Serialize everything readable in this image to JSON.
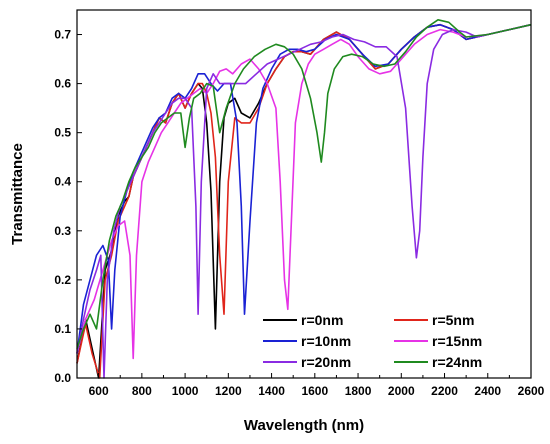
{
  "chart_data": {
    "type": "line",
    "title": "",
    "xlabel": "Wavelength (nm)",
    "ylabel": "Transmittance",
    "xlim": [
      500,
      2600
    ],
    "ylim": [
      0.0,
      0.75
    ],
    "xticks": [
      600,
      800,
      1000,
      1200,
      1400,
      1600,
      1800,
      2000,
      2200,
      2400,
      2600
    ],
    "yticks": [
      0.0,
      0.1,
      0.2,
      0.3,
      0.4,
      0.5,
      0.6,
      0.7
    ],
    "grid": false,
    "legend_position": "bottom-right",
    "series": [
      {
        "name": "r=0nm",
        "color": "#000000",
        "x": [
          500,
          540,
          570,
          600,
          630,
          660,
          690,
          720,
          740,
          760,
          790,
          820,
          850,
          880,
          910,
          940,
          970,
          1000,
          1030,
          1060,
          1080,
          1100,
          1120,
          1140,
          1160,
          1180,
          1200,
          1230,
          1260,
          1300,
          1340,
          1380,
          1420,
          1460,
          1500,
          1540,
          1580,
          1640,
          1700,
          1760,
          1820,
          1880,
          1940,
          2000,
          2060,
          2120,
          2180,
          2240,
          2300,
          2400,
          2500,
          2600
        ],
        "y": [
          0.03,
          0.12,
          0.06,
          0.0,
          0.22,
          0.26,
          0.33,
          0.36,
          0.37,
          0.41,
          0.44,
          0.47,
          0.5,
          0.53,
          0.52,
          0.56,
          0.58,
          0.55,
          0.58,
          0.6,
          0.59,
          0.52,
          0.38,
          0.1,
          0.4,
          0.53,
          0.56,
          0.57,
          0.54,
          0.53,
          0.56,
          0.6,
          0.63,
          0.655,
          0.665,
          0.665,
          0.66,
          0.69,
          0.705,
          0.69,
          0.66,
          0.63,
          0.64,
          0.67,
          0.695,
          0.715,
          0.72,
          0.71,
          0.69,
          0.7,
          0.71,
          0.72
        ]
      },
      {
        "name": "r=5nm",
        "color": "#e0251b",
        "x": [
          500,
          540,
          570,
          605,
          630,
          660,
          690,
          720,
          740,
          760,
          790,
          820,
          850,
          880,
          910,
          940,
          970,
          1000,
          1030,
          1060,
          1080,
          1100,
          1120,
          1140,
          1160,
          1180,
          1200,
          1230,
          1260,
          1300,
          1340,
          1380,
          1420,
          1460,
          1500,
          1540,
          1580,
          1640,
          1700,
          1760,
          1820,
          1880,
          1940,
          2000,
          2060,
          2120,
          2180,
          2240,
          2300,
          2400,
          2500,
          2600
        ],
        "y": [
          0.03,
          0.11,
          0.05,
          0.0,
          0.2,
          0.25,
          0.32,
          0.35,
          0.37,
          0.41,
          0.44,
          0.47,
          0.5,
          0.53,
          0.52,
          0.56,
          0.58,
          0.55,
          0.58,
          0.6,
          0.6,
          0.58,
          0.54,
          0.45,
          0.25,
          0.13,
          0.4,
          0.53,
          0.52,
          0.52,
          0.55,
          0.6,
          0.63,
          0.655,
          0.665,
          0.665,
          0.66,
          0.69,
          0.705,
          0.69,
          0.66,
          0.63,
          0.64,
          0.67,
          0.695,
          0.715,
          0.72,
          0.71,
          0.69,
          0.7,
          0.71,
          0.72
        ]
      },
      {
        "name": "r=10nm",
        "color": "#1a22d4",
        "x": [
          500,
          530,
          560,
          590,
          620,
          645,
          660,
          675,
          700,
          730,
          760,
          790,
          820,
          850,
          880,
          910,
          940,
          970,
          1000,
          1030,
          1060,
          1090,
          1120,
          1150,
          1180,
          1210,
          1240,
          1260,
          1275,
          1300,
          1330,
          1360,
          1400,
          1440,
          1480,
          1520,
          1560,
          1600,
          1650,
          1700,
          1760,
          1820,
          1880,
          1940,
          2000,
          2060,
          2120,
          2180,
          2240,
          2300,
          2400,
          2500,
          2600
        ],
        "y": [
          0.05,
          0.15,
          0.2,
          0.25,
          0.27,
          0.24,
          0.1,
          0.22,
          0.33,
          0.38,
          0.42,
          0.45,
          0.48,
          0.51,
          0.53,
          0.54,
          0.57,
          0.58,
          0.57,
          0.59,
          0.62,
          0.62,
          0.6,
          0.585,
          0.6,
          0.6,
          0.52,
          0.35,
          0.13,
          0.32,
          0.52,
          0.59,
          0.63,
          0.66,
          0.67,
          0.67,
          0.665,
          0.67,
          0.69,
          0.7,
          0.69,
          0.66,
          0.635,
          0.64,
          0.67,
          0.695,
          0.715,
          0.72,
          0.71,
          0.69,
          0.7,
          0.71,
          0.72
        ]
      },
      {
        "name": "r=15nm",
        "color": "#e633e6",
        "x": [
          500,
          540,
          580,
          620,
          660,
          690,
          720,
          745,
          760,
          775,
          800,
          830,
          860,
          890,
          920,
          950,
          980,
          1010,
          1040,
          1070,
          1100,
          1130,
          1160,
          1190,
          1220,
          1260,
          1300,
          1340,
          1380,
          1420,
          1440,
          1460,
          1475,
          1490,
          1510,
          1540,
          1570,
          1600,
          1640,
          1680,
          1720,
          1760,
          1800,
          1850,
          1900,
          1950,
          2000,
          2060,
          2120,
          2180,
          2240,
          2300,
          2400,
          2500,
          2600
        ],
        "y": [
          0.05,
          0.12,
          0.16,
          0.22,
          0.28,
          0.31,
          0.32,
          0.25,
          0.04,
          0.25,
          0.4,
          0.44,
          0.47,
          0.5,
          0.52,
          0.54,
          0.56,
          0.57,
          0.58,
          0.59,
          0.58,
          0.6,
          0.625,
          0.63,
          0.62,
          0.64,
          0.65,
          0.63,
          0.6,
          0.55,
          0.4,
          0.2,
          0.14,
          0.3,
          0.52,
          0.6,
          0.64,
          0.66,
          0.67,
          0.68,
          0.69,
          0.68,
          0.655,
          0.63,
          0.62,
          0.625,
          0.65,
          0.68,
          0.7,
          0.71,
          0.705,
          0.695,
          0.7,
          0.71,
          0.72
        ]
      },
      {
        "name": "r=20nm",
        "color": "#8a2be2",
        "x": [
          500,
          530,
          560,
          590,
          610,
          625,
          640,
          670,
          700,
          730,
          760,
          790,
          820,
          850,
          880,
          910,
          940,
          970,
          1000,
          1030,
          1050,
          1060,
          1075,
          1100,
          1130,
          1160,
          1190,
          1230,
          1280,
          1330,
          1380,
          1430,
          1480,
          1530,
          1580,
          1630,
          1680,
          1730,
          1780,
          1830,
          1880,
          1930,
          1980,
          2020,
          2050,
          2070,
          2085,
          2100,
          2120,
          2150,
          2190,
          2240,
          2300,
          2350,
          2400,
          2500,
          2600
        ],
        "y": [
          0.05,
          0.12,
          0.18,
          0.22,
          0.25,
          0.0,
          0.2,
          0.3,
          0.35,
          0.38,
          0.41,
          0.44,
          0.47,
          0.5,
          0.52,
          0.54,
          0.56,
          0.57,
          0.57,
          0.55,
          0.35,
          0.13,
          0.4,
          0.59,
          0.62,
          0.6,
          0.6,
          0.6,
          0.6,
          0.62,
          0.64,
          0.65,
          0.66,
          0.67,
          0.68,
          0.685,
          0.695,
          0.7,
          0.69,
          0.685,
          0.675,
          0.675,
          0.655,
          0.55,
          0.35,
          0.245,
          0.3,
          0.45,
          0.6,
          0.67,
          0.7,
          0.71,
          0.705,
          0.695,
          0.7,
          0.71,
          0.72
        ]
      },
      {
        "name": "r=24nm",
        "color": "#1f8a1f",
        "x": [
          500,
          530,
          560,
          590,
          620,
          650,
          680,
          710,
          740,
          770,
          800,
          830,
          860,
          890,
          920,
          950,
          980,
          1000,
          1020,
          1040,
          1070,
          1100,
          1130,
          1160,
          1190,
          1230,
          1270,
          1320,
          1370,
          1420,
          1460,
          1500,
          1540,
          1580,
          1610,
          1630,
          1645,
          1660,
          1690,
          1730,
          1770,
          1820,
          1870,
          1920,
          1970,
          2020,
          2070,
          2120,
          2170,
          2220,
          2270,
          2300,
          2400,
          2500,
          2600
        ],
        "y": [
          0.06,
          0.1,
          0.13,
          0.1,
          0.2,
          0.28,
          0.33,
          0.36,
          0.4,
          0.43,
          0.45,
          0.47,
          0.5,
          0.52,
          0.53,
          0.54,
          0.54,
          0.47,
          0.53,
          0.57,
          0.58,
          0.6,
          0.595,
          0.5,
          0.55,
          0.6,
          0.63,
          0.655,
          0.67,
          0.68,
          0.675,
          0.66,
          0.63,
          0.57,
          0.5,
          0.44,
          0.5,
          0.58,
          0.63,
          0.655,
          0.66,
          0.655,
          0.64,
          0.635,
          0.64,
          0.665,
          0.695,
          0.715,
          0.73,
          0.725,
          0.705,
          0.695,
          0.7,
          0.71,
          0.72
        ]
      }
    ]
  }
}
